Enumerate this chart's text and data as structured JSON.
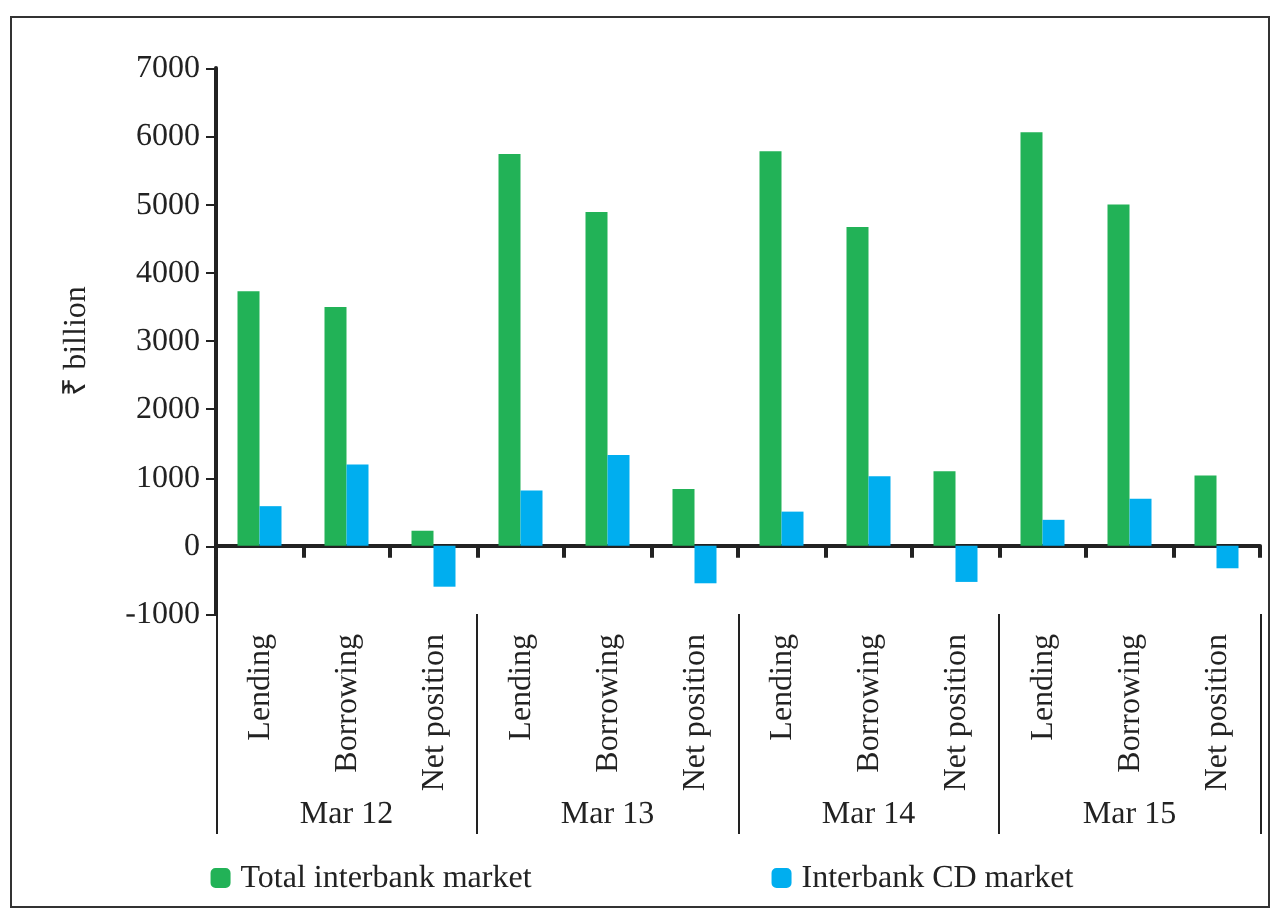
{
  "chart_data": {
    "type": "bar",
    "ylabel": "₹ billion",
    "categories": [
      "Lending",
      "Borrowing",
      "Net position",
      "Lending",
      "Borrowing",
      "Net position",
      "Lending",
      "Borrowing",
      "Net position",
      "Lending",
      "Borrowing",
      "Net position"
    ],
    "annotations": [
      "Mar 12",
      "Mar 13",
      "Mar 14",
      "Mar 15"
    ],
    "series": [
      {
        "name": "Total interbank market",
        "color": "#22b257",
        "values": [
          3730,
          3500,
          220,
          5740,
          4890,
          830,
          5780,
          4670,
          1090,
          6060,
          5000,
          1030
        ]
      },
      {
        "name": "Interbank CD market",
        "color": "#00aeef",
        "values": [
          580,
          1190,
          -600,
          810,
          1330,
          -550,
          500,
          1020,
          -530,
          380,
          690,
          -330
        ]
      }
    ],
    "ylim": [
      -1000,
      7000
    ],
    "yticks": [
      -1000,
      0,
      1000,
      2000,
      3000,
      4000,
      5000,
      6000,
      7000
    ],
    "legend": "bottom"
  }
}
